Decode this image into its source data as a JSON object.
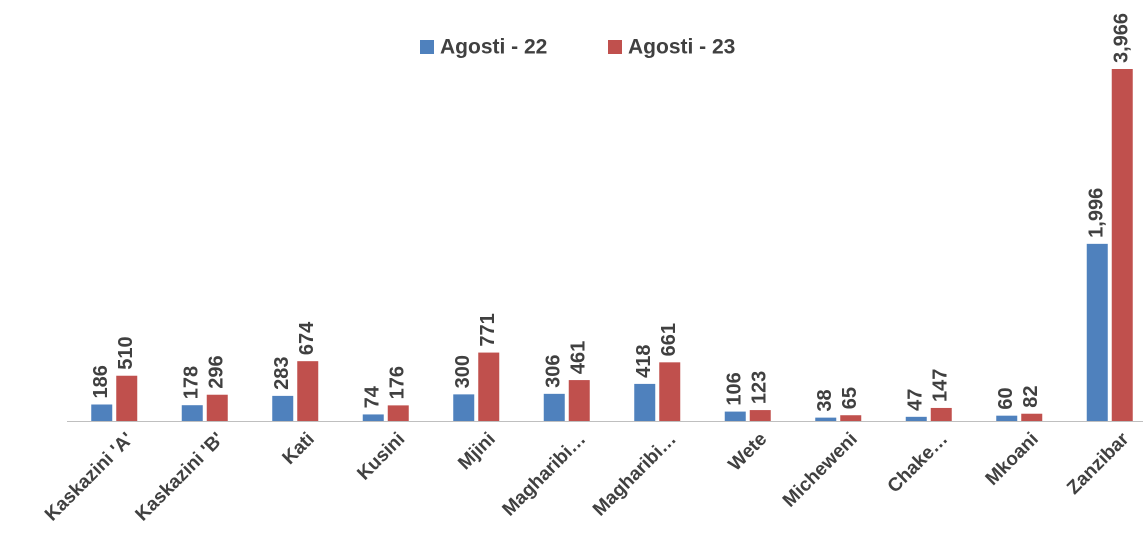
{
  "chart_data": {
    "type": "bar",
    "categories": [
      "Kaskazini 'A'",
      "Kaskazini 'B'",
      "Kati",
      "Kusini",
      "Mjini",
      "Magharibi…",
      "Magharibi…",
      "Wete",
      "Micheweni",
      "Chake…",
      "Mkoani",
      "Zanzibar"
    ],
    "series": [
      {
        "name": "Agosti - 22",
        "color": "#4f81bd",
        "values": [
          186,
          178,
          283,
          74,
          300,
          306,
          418,
          106,
          38,
          47,
          60,
          1996
        ],
        "value_labels": [
          "186",
          "178",
          "283",
          "74",
          "300",
          "306",
          "418",
          "106",
          "38",
          "47",
          "60",
          "1,996"
        ]
      },
      {
        "name": "Agosti - 23",
        "color": "#c0504d",
        "values": [
          510,
          296,
          674,
          176,
          771,
          461,
          661,
          123,
          65,
          147,
          82,
          3966
        ],
        "value_labels": [
          "510",
          "296",
          "674",
          "176",
          "771",
          "461",
          "661",
          "123",
          "65",
          "147",
          "82",
          "3,966"
        ]
      }
    ],
    "legend": "top"
  }
}
